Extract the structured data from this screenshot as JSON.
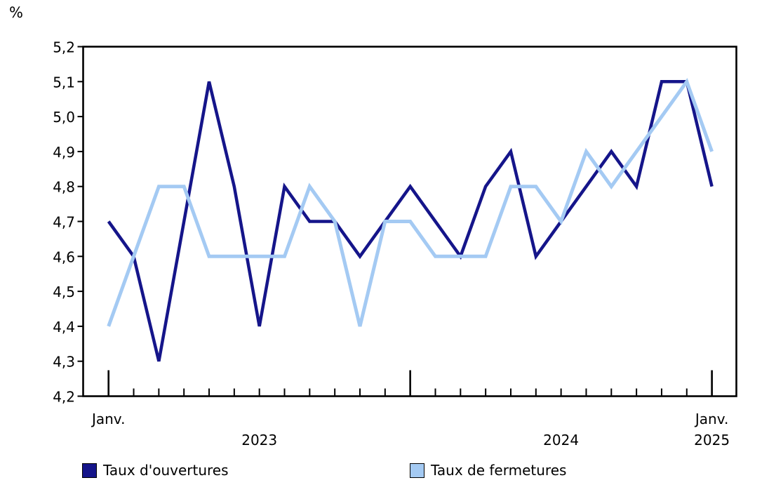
{
  "chart_data": {
    "type": "line",
    "unit": "%",
    "n_points": 25,
    "x_major_tick_indices": [
      0,
      12,
      24
    ],
    "x_tick_labels": [
      {
        "text": "Janv.",
        "index": 0,
        "row": 0
      },
      {
        "text": "2023",
        "index": 6,
        "row": 1
      },
      {
        "text": "2024",
        "index": 18,
        "row": 1
      },
      {
        "text": "Janv.",
        "index": 24,
        "row": 0
      },
      {
        "text": "2025",
        "index": 24,
        "row": 1
      }
    ],
    "ylim": [
      4.2,
      5.2
    ],
    "ytick_step": 0.1,
    "ytick_labels": [
      "5,2",
      "5,1",
      "5,0",
      "4,9",
      "4,8",
      "4,7",
      "4,6",
      "4,5",
      "4,4",
      "4,3",
      "4,2"
    ],
    "grid": false,
    "legend_position": "bottom",
    "series": [
      {
        "name": "Taux d'ouvertures",
        "color": "#15158a",
        "values": [
          4.7,
          4.6,
          4.3,
          4.7,
          5.1,
          4.8,
          4.4,
          4.8,
          4.7,
          4.7,
          4.6,
          4.7,
          4.8,
          4.7,
          4.6,
          4.8,
          4.9,
          4.6,
          4.7,
          4.8,
          4.9,
          4.8,
          5.1,
          5.1,
          4.8
        ]
      },
      {
        "name": "Taux de fermetures",
        "color": "#a4caf3",
        "values": [
          4.4,
          4.6,
          4.8,
          4.8,
          4.6,
          4.6,
          4.6,
          4.6,
          4.8,
          4.7,
          4.4,
          4.7,
          4.7,
          4.6,
          4.6,
          4.6,
          4.8,
          4.8,
          4.7,
          4.9,
          4.8,
          4.9,
          5.0,
          5.1,
          4.9
        ]
      }
    ]
  }
}
